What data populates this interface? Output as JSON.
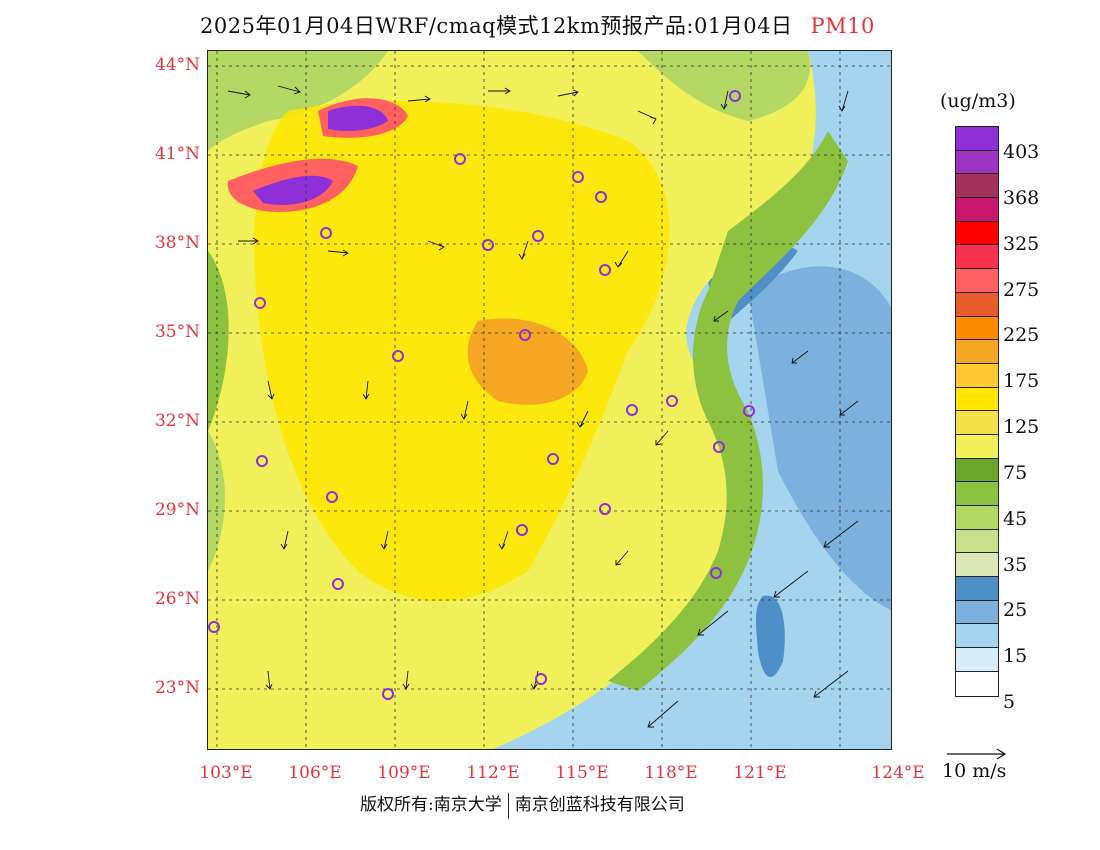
{
  "title": {
    "text": "2025年01月04日WRF/cmaq模式12km预报产品:01月04日",
    "variable": "PM10"
  },
  "axes": {
    "lat_labels": [
      "44°N",
      "41°N",
      "38°N",
      "35°N",
      "32°N",
      "29°N",
      "26°N",
      "23°N"
    ],
    "lon_labels": [
      "103°E",
      "106°E",
      "109°E",
      "112°E",
      "115°E",
      "118°E",
      "121°E",
      "124°E"
    ]
  },
  "colorbar": {
    "unit": "(ug/m3)",
    "colors": [
      "#8f2fd8",
      "#9d34c4",
      "#a3315c",
      "#c8166e",
      "#ff0000",
      "#f5314f",
      "#ff6160",
      "#e85b2c",
      "#ff8c00",
      "#f5a623",
      "#ffc934",
      "#ffe600",
      "#f1e04a",
      "#f1f05a",
      "#6ba52d",
      "#8cc23f",
      "#b4d863",
      "#c8e08a",
      "#dde8b8",
      "#4d8fc6",
      "#7cb1de",
      "#a5d4ef",
      "#d9edf9",
      "#ffffff"
    ],
    "labels": [
      "403",
      "368",
      "325",
      "275",
      "225",
      "175",
      "125",
      "75",
      "45",
      "35",
      "25",
      "15",
      "5"
    ]
  },
  "wind_reference": {
    "label": "10 m/s"
  },
  "footer": {
    "left": "版权所有:南京大学",
    "right": "南京创蓝科技有限公司"
  },
  "map": {
    "palette": {
      "ocean": "#a5d4ef",
      "ocean_deep": "#4d8fc6",
      "land": "#f1f05a",
      "land_mid": "#ffe600",
      "green": "#8cc23f",
      "high": "#ff6160",
      "max": "#8f2fd8",
      "marker": "#8f2fd8"
    }
  }
}
